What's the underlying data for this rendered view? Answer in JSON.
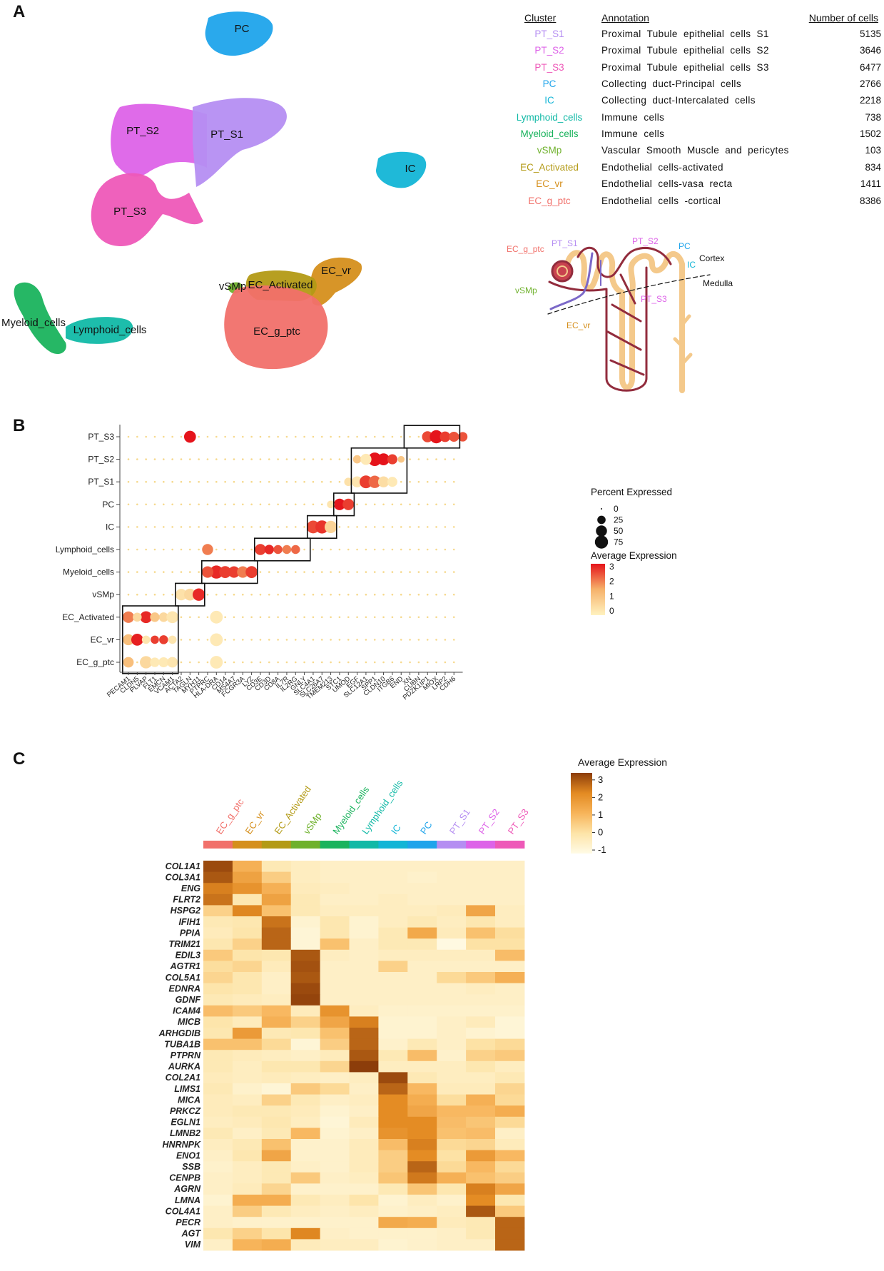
{
  "panels": {
    "a": "A",
    "b": "B",
    "c": "C"
  },
  "table": {
    "headers": {
      "cluster": "Cluster",
      "annotation": "Annotation",
      "count": "Number of cells"
    },
    "rows": [
      {
        "cluster": "PT_S1",
        "annotation": "Proximal Tubule epithelial cells S1",
        "count": "5135",
        "color": "#b58ef2"
      },
      {
        "cluster": "PT_S2",
        "annotation": "Proximal Tubule epithelial cells S2",
        "count": "3646",
        "color": "#dd63e8"
      },
      {
        "cluster": "PT_S3",
        "annotation": "Proximal Tubule epithelial cells S3",
        "count": "6477",
        "color": "#ee59b8"
      },
      {
        "cluster": "PC",
        "annotation": "Collecting duct-Principal cells",
        "count": "2766",
        "color": "#1fa4eb"
      },
      {
        "cluster": "IC",
        "annotation": "Collecting duct-Intercalated cells",
        "count": "2218",
        "color": "#13b5d6"
      },
      {
        "cluster": "Lymphoid_cells",
        "annotation": "Immune cells",
        "count": "738",
        "color": "#11b9a6"
      },
      {
        "cluster": "Myeloid_cells",
        "annotation": "Immune cells",
        "count": "1502",
        "color": "#1ab35d"
      },
      {
        "cluster": "vSMp",
        "annotation": "Vascular Smooth Muscle and pericytes",
        "count": "103",
        "color": "#6fb12c"
      },
      {
        "cluster": "EC_Activated",
        "annotation": "Endothelial cells-activated",
        "count": "834",
        "color": "#b39a15"
      },
      {
        "cluster": "EC_vr",
        "annotation": "Endothelial cells-vasa recta",
        "count": "1411",
        "color": "#d58f1c"
      },
      {
        "cluster": "EC_g_ptc",
        "annotation": "Endothelial cells -cortical",
        "count": "8386",
        "color": "#f1706a"
      }
    ]
  },
  "umap": {
    "clusters": [
      {
        "label": "PC",
        "color": "#1fa4eb"
      },
      {
        "label": "PT_S2",
        "color": "#dd63e8"
      },
      {
        "label": "PT_S1",
        "color": "#b58ef2"
      },
      {
        "label": "PT_S3",
        "color": "#ee59b8"
      },
      {
        "label": "IC",
        "color": "#13b5d6"
      },
      {
        "label": "EC_vr",
        "color": "#d58f1c"
      },
      {
        "label": "vSMp",
        "color": "#6fb12c"
      },
      {
        "label": "EC_Activated",
        "color": "#b39a15"
      },
      {
        "label": "Myeloid_cells",
        "color": "#1ab35d"
      },
      {
        "label": "Lymphoid_cells",
        "color": "#11b9a6"
      },
      {
        "label": "EC_g_ptc",
        "color": "#f1706a"
      }
    ]
  },
  "nephron": {
    "labels": {
      "pt_s1": "PT_S1",
      "pt_s2": "PT_S2",
      "pc": "PC",
      "ic": "IC",
      "ec_g_ptc": "EC_g_ptc",
      "vsmp": "vSMp",
      "pt_s3": "PT_S3",
      "ec_vr": "EC_vr",
      "cortex": "Cortex",
      "medulla": "Medulla"
    }
  },
  "chart_data": [
    {
      "type": "dotplot",
      "panel": "B",
      "rows": [
        "PT_S3",
        "PT_S2",
        "PT_S1",
        "PC",
        "IC",
        "Lymphoid_cells",
        "Myeloid_cells",
        "vSMp",
        "EC_Activated",
        "EC_vr",
        "EC_g_ptc"
      ],
      "genes": [
        "PECAM1",
        "CLDN5",
        "PLVAP",
        "FLT1",
        "EMCN",
        "VCAM1",
        "ACTA2",
        "TAGLN",
        "MYH11",
        "PTPRC",
        "HLA-DRA",
        "CD14",
        "MS4A7",
        "FCGR3A",
        "LYZ",
        "CD3E",
        "CD3D",
        "CD8A",
        "IL7R",
        "IL2RG",
        "GNLY",
        "SLC4A1",
        "SLC26A7",
        "TMEM213",
        "STC1",
        "UMOD",
        "EGF",
        "SLC12A1",
        "SPP1",
        "CLDN10",
        "ITGB6",
        "END",
        "XN",
        "CUBN",
        "PDZK1IP1",
        "MIOX",
        "LRP2",
        "CDH6"
      ],
      "size_legend": {
        "title": "Percent Expressed",
        "values": [
          0,
          25,
          50,
          75
        ]
      },
      "color_legend": {
        "title": "Average Expression",
        "ticks": [
          3,
          2,
          1,
          0
        ],
        "low_color": "#fff2c0",
        "high_color": "#e5141b"
      },
      "highlights": [
        {
          "row": "PT_S3",
          "cells": [
            [
              7,
              60,
              3.0
            ],
            [
              34,
              50,
              2.5
            ],
            [
              35,
              75,
              3.0
            ],
            [
              36,
              45,
              2.6
            ],
            [
              37,
              40,
              2.4
            ],
            [
              38,
              35,
              2.4
            ]
          ]
        },
        {
          "row": "PT_S2",
          "cells": [
            [
              28,
              80,
              3.0
            ],
            [
              29,
              60,
              3.0
            ],
            [
              30,
              40,
              2.6
            ],
            [
              26,
              25,
              1.0
            ],
            [
              27,
              50,
              0.2
            ],
            [
              31,
              15,
              1.0
            ]
          ]
        },
        {
          "row": "PT_S1",
          "cells": [
            [
              26,
              50,
              0.3
            ],
            [
              27,
              70,
              2.6
            ],
            [
              28,
              65,
              2.2
            ],
            [
              29,
              50,
              0.5
            ],
            [
              30,
              40,
              0.2
            ],
            [
              25,
              25,
              0.4
            ]
          ]
        },
        {
          "row": "PC",
          "cells": [
            [
              24,
              55,
              3.0
            ],
            [
              25,
              55,
              2.6
            ],
            [
              23,
              20,
              0.3
            ]
          ]
        },
        {
          "row": "IC",
          "cells": [
            [
              21,
              70,
              2.5
            ],
            [
              22,
              75,
              2.7
            ],
            [
              23,
              65,
              0.7
            ]
          ]
        },
        {
          "row": "Lymphoid_cells",
          "cells": [
            [
              15,
              50,
              2.6
            ],
            [
              16,
              35,
              2.8
            ],
            [
              17,
              30,
              2.4
            ],
            [
              18,
              30,
              2.0
            ],
            [
              19,
              30,
              2.2
            ],
            [
              9,
              50,
              2.0
            ]
          ]
        },
        {
          "row": "Myeloid_cells",
          "cells": [
            [
              10,
              75,
              2.8
            ],
            [
              11,
              60,
              2.6
            ],
            [
              12,
              55,
              2.6
            ],
            [
              13,
              55,
              2.0
            ],
            [
              14,
              60,
              2.6
            ],
            [
              9,
              55,
              2.4
            ]
          ]
        },
        {
          "row": "vSMp",
          "cells": [
            [
              6,
              55,
              0.4
            ],
            [
              7,
              60,
              0.6
            ],
            [
              8,
              65,
              2.8
            ]
          ]
        },
        {
          "row": "EC_Activated",
          "cells": [
            [
              0,
              55,
              2.0
            ],
            [
              2,
              60,
              2.8
            ],
            [
              4,
              35,
              0.6
            ],
            [
              5,
              60,
              0.3
            ],
            [
              1,
              30,
              0.6
            ],
            [
              3,
              35,
              1.0
            ],
            [
              10,
              70,
              0.2
            ]
          ]
        },
        {
          "row": "EC_vr",
          "cells": [
            [
              0,
              50,
              1.2
            ],
            [
              1,
              60,
              2.9
            ],
            [
              2,
              25,
              0.3
            ],
            [
              3,
              25,
              2.6
            ],
            [
              4,
              30,
              2.6
            ],
            [
              5,
              25,
              0.3
            ],
            [
              10,
              70,
              0.2
            ]
          ]
        },
        {
          "row": "EC_g_ptc",
          "cells": [
            [
              0,
              45,
              1.2
            ],
            [
              2,
              65,
              0.6
            ],
            [
              3,
              35,
              0.2
            ],
            [
              4,
              40,
              0.2
            ],
            [
              5,
              45,
              0.3
            ],
            [
              10,
              70,
              0.2
            ]
          ]
        }
      ],
      "boxes": [
        {
          "rows": [
            "EC_Activated",
            "EC_g_ptc"
          ],
          "genes": [
            0,
            5
          ]
        },
        {
          "rows": [
            "vSMp"
          ],
          "genes": [
            6,
            8
          ]
        },
        {
          "rows": [
            "Myeloid_cells"
          ],
          "genes": [
            9,
            14
          ]
        },
        {
          "rows": [
            "Lymphoid_cells"
          ],
          "genes": [
            15,
            20
          ]
        },
        {
          "rows": [
            "IC"
          ],
          "genes": [
            21,
            23
          ]
        },
        {
          "rows": [
            "PC"
          ],
          "genes": [
            24,
            25
          ]
        },
        {
          "rows": [
            "PT_S2",
            "PT_S1"
          ],
          "genes": [
            26,
            31
          ]
        },
        {
          "rows": [
            "PT_S3"
          ],
          "genes": [
            32,
            37
          ]
        }
      ]
    },
    {
      "type": "heatmap",
      "panel": "C",
      "columns": [
        "EC_g_ptc",
        "EC_vr",
        "EC_Activated",
        "vSMp",
        "Myeloid_cells",
        "Lymphoid_cells",
        "IC",
        "PC",
        "PT_S1",
        "PT_S2",
        "PT_S3"
      ],
      "column_colors": [
        "#f1706a",
        "#d58f1c",
        "#b39a15",
        "#6fb12c",
        "#1ab35d",
        "#11b9a6",
        "#13b5d6",
        "#1fa4eb",
        "#b58ef2",
        "#dd63e8",
        "#ee59b8"
      ],
      "genes": [
        "COL1A1",
        "COL3A1",
        "ENG",
        "FLRT2",
        "HSPG2",
        "IFIH1",
        "PPIA",
        "TRIM21",
        "EDIL3",
        "AGTR1",
        "COL5A1",
        "EDNRA",
        "GDNF",
        "ICAM4",
        "MICB",
        "ARHGDIB",
        "TUBA1B",
        "PTPRN",
        "AURKA",
        "COL2A1",
        "LIMS1",
        "MICA",
        "PRKCZ",
        "EGLN1",
        "LMNB2",
        "HNRNPK",
        "ENO1",
        "SSB",
        "CENPB",
        "AGRN",
        "LMNA",
        "COL4A1",
        "PECR",
        "AGT",
        "VIM"
      ],
      "values": [
        [
          3.2,
          1.2,
          -0.3,
          -0.5,
          -0.6,
          -0.6,
          -0.6,
          -0.6,
          -0.6,
          -0.6,
          -0.6
        ],
        [
          3.0,
          1.6,
          0.5,
          -0.5,
          -0.6,
          -0.6,
          -0.6,
          -0.7,
          -0.6,
          -0.6,
          -0.6
        ],
        [
          2.4,
          2.0,
          1.2,
          -0.4,
          -0.5,
          -0.6,
          -0.6,
          -0.6,
          -0.6,
          -0.6,
          -0.6
        ],
        [
          2.6,
          -0.2,
          1.6,
          -0.3,
          -0.6,
          -0.6,
          -0.5,
          -0.6,
          -0.6,
          -0.6,
          -0.6
        ],
        [
          0.4,
          2.3,
          0.8,
          -0.3,
          -0.5,
          -0.5,
          -0.5,
          -0.5,
          -0.4,
          1.5,
          -0.5
        ],
        [
          -0.3,
          -0.2,
          2.6,
          -0.8,
          -0.2,
          -0.8,
          -0.5,
          -0.3,
          -0.5,
          -0.2,
          -0.5
        ],
        [
          -0.4,
          -0.1,
          2.8,
          -0.9,
          -0.2,
          -0.8,
          -0.3,
          1.4,
          -0.4,
          0.8,
          0.1
        ],
        [
          -0.2,
          0.4,
          2.8,
          -0.9,
          0.8,
          -0.6,
          -0.3,
          -0.3,
          -1.1,
          0.0,
          0.0
        ],
        [
          0.6,
          -0.1,
          -0.2,
          3.0,
          -0.5,
          -0.6,
          -0.5,
          -0.5,
          -0.5,
          -0.5,
          0.9
        ],
        [
          0.1,
          0.3,
          -0.4,
          3.1,
          -0.6,
          -0.6,
          0.4,
          -0.6,
          -0.6,
          -0.6,
          -0.6
        ],
        [
          0.3,
          -0.2,
          -0.6,
          3.0,
          -0.6,
          -0.6,
          -0.6,
          -0.6,
          0.2,
          0.6,
          1.2
        ],
        [
          -0.1,
          -0.2,
          -0.6,
          3.2,
          -0.6,
          -0.6,
          -0.6,
          -0.6,
          -0.6,
          -0.5,
          -0.6
        ],
        [
          -0.3,
          -0.4,
          -0.5,
          3.3,
          -0.6,
          -0.6,
          -0.6,
          -0.6,
          -0.6,
          -0.6,
          -0.6
        ],
        [
          0.9,
          0.6,
          1.0,
          -0.4,
          2.0,
          -0.5,
          -0.7,
          -0.7,
          -0.7,
          -0.7,
          -0.7
        ],
        [
          -0.1,
          -0.4,
          1.2,
          0.4,
          1.5,
          2.4,
          -0.8,
          -0.8,
          -0.6,
          -0.4,
          -0.9
        ],
        [
          -0.2,
          1.8,
          -0.3,
          -0.2,
          0.8,
          2.8,
          -0.8,
          -0.8,
          -0.6,
          -0.8,
          -0.9
        ],
        [
          0.8,
          0.8,
          0.2,
          -0.9,
          0.5,
          2.8,
          -0.7,
          -0.3,
          -0.6,
          0.0,
          0.2
        ],
        [
          -0.3,
          -0.4,
          -0.5,
          -0.6,
          -0.4,
          3.0,
          -0.3,
          0.9,
          -0.7,
          0.4,
          0.6
        ],
        [
          -0.3,
          -0.5,
          -0.2,
          -0.2,
          0.3,
          3.4,
          -0.5,
          -0.5,
          -0.5,
          -0.2,
          -0.5
        ],
        [
          -0.4,
          -0.5,
          -0.4,
          -0.5,
          -0.6,
          -0.5,
          3.2,
          -0.3,
          -0.5,
          -0.5,
          -0.3
        ],
        [
          -0.3,
          -0.7,
          -0.9,
          0.6,
          0.2,
          -0.6,
          2.8,
          1.0,
          -0.4,
          -0.4,
          0.3
        ],
        [
          -0.4,
          -0.5,
          0.4,
          -0.3,
          -0.6,
          -0.5,
          2.2,
          1.3,
          0.1,
          1.2,
          0.2
        ],
        [
          -0.4,
          -0.3,
          -0.3,
          -0.4,
          -0.8,
          -0.6,
          2.2,
          1.5,
          1.0,
          1.0,
          1.3
        ],
        [
          -0.5,
          -0.4,
          -0.2,
          -0.5,
          -0.9,
          -0.4,
          2.2,
          2.2,
          0.9,
          0.7,
          0.2
        ],
        [
          -0.3,
          -0.6,
          -0.3,
          1.0,
          -0.8,
          -0.6,
          2.0,
          2.2,
          0.8,
          0.9,
          -0.6
        ],
        [
          -0.5,
          -0.3,
          0.8,
          -0.7,
          -0.7,
          -0.4,
          0.9,
          2.4,
          0.2,
          0.3,
          -0.4
        ],
        [
          -0.6,
          -0.2,
          1.5,
          -0.7,
          -0.7,
          -0.4,
          0.5,
          2.2,
          0.0,
          1.8,
          1.0
        ],
        [
          -0.7,
          -0.5,
          -0.3,
          -0.6,
          -0.7,
          -0.4,
          0.5,
          2.8,
          0.2,
          1.0,
          0.2
        ],
        [
          -0.6,
          -0.5,
          -0.3,
          0.6,
          -0.6,
          -0.5,
          0.7,
          2.5,
          1.2,
          0.8,
          0.5
        ],
        [
          -0.6,
          -0.4,
          0.3,
          -0.7,
          -0.7,
          -0.7,
          -0.3,
          0.7,
          -0.2,
          2.4,
          1.5
        ],
        [
          -0.8,
          1.3,
          1.3,
          -0.3,
          -0.5,
          -0.1,
          -0.8,
          -0.5,
          -0.7,
          2.2,
          -0.2
        ],
        [
          -0.6,
          0.5,
          -0.3,
          -0.5,
          -0.6,
          -0.5,
          -0.7,
          -0.6,
          -0.5,
          3.0,
          0.6
        ],
        [
          -0.6,
          -0.7,
          -0.7,
          -0.7,
          -0.7,
          -0.7,
          1.4,
          1.3,
          -0.4,
          -0.3,
          2.8
        ],
        [
          -0.2,
          0.4,
          -0.1,
          2.3,
          -0.6,
          -0.7,
          -0.7,
          -0.7,
          -0.6,
          -0.3,
          2.8
        ],
        [
          -0.6,
          1.1,
          1.3,
          -0.4,
          -0.5,
          -0.5,
          -0.8,
          -0.7,
          -0.6,
          -0.6,
          2.8
        ]
      ],
      "legend": {
        "title": "Average Expression",
        "ticks": [
          3,
          2,
          1,
          0,
          -1
        ],
        "range": [
          -1.2,
          3.4
        ]
      }
    }
  ]
}
